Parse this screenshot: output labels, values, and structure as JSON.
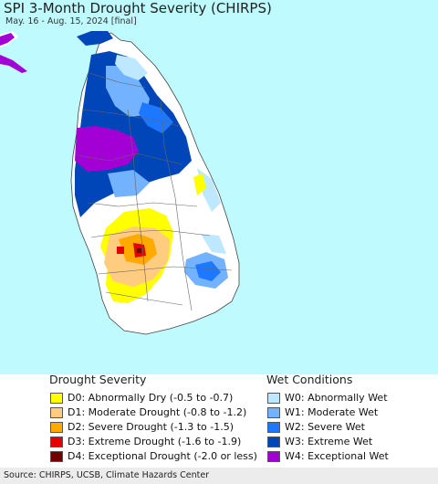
{
  "title": "SPI 3-Month Drought Severity (CHIRPS)",
  "subtitle": "May. 16 - Aug. 15, 2024 [final]",
  "colors": {
    "ocean": "#bffaff",
    "land": "#ffffff",
    "w4": "#a300d6",
    "w3": "#0046b8",
    "w2": "#1e78ff",
    "w1": "#73b2ff",
    "w0": "#bee8ff",
    "d0": "#ffff00",
    "d1": "#ffcc80",
    "d2": "#ffaa00",
    "d3": "#e60000",
    "d4": "#730000"
  },
  "legend": {
    "drought_title": "Drought Severity",
    "wet_title": "Wet Conditions",
    "drought_items": [
      {
        "code": "d0",
        "label": "D0: Abnormally Dry (-0.5 to -0.7)"
      },
      {
        "code": "d1",
        "label": "D1: Moderate Drought (-0.8 to -1.2)"
      },
      {
        "code": "d2",
        "label": "D2: Severe Drought (-1.3 to -1.5)"
      },
      {
        "code": "d3",
        "label": "D3: Extreme Drought (-1.6 to -1.9)"
      },
      {
        "code": "d4",
        "label": "D4: Exceptional Drought (-2.0 or less)"
      }
    ],
    "wet_items": [
      {
        "code": "w0",
        "label": "W0: Abnormally Wet"
      },
      {
        "code": "w1",
        "label": "W1: Moderate Wet"
      },
      {
        "code": "w2",
        "label": "W2: Severe Wet"
      },
      {
        "code": "w3",
        "label": "W3: Extreme Wet"
      },
      {
        "code": "w4",
        "label": "W4: Exceptional Wet"
      }
    ]
  },
  "source": "Source: CHIRPS, UCSB, Climate Hazards Center"
}
